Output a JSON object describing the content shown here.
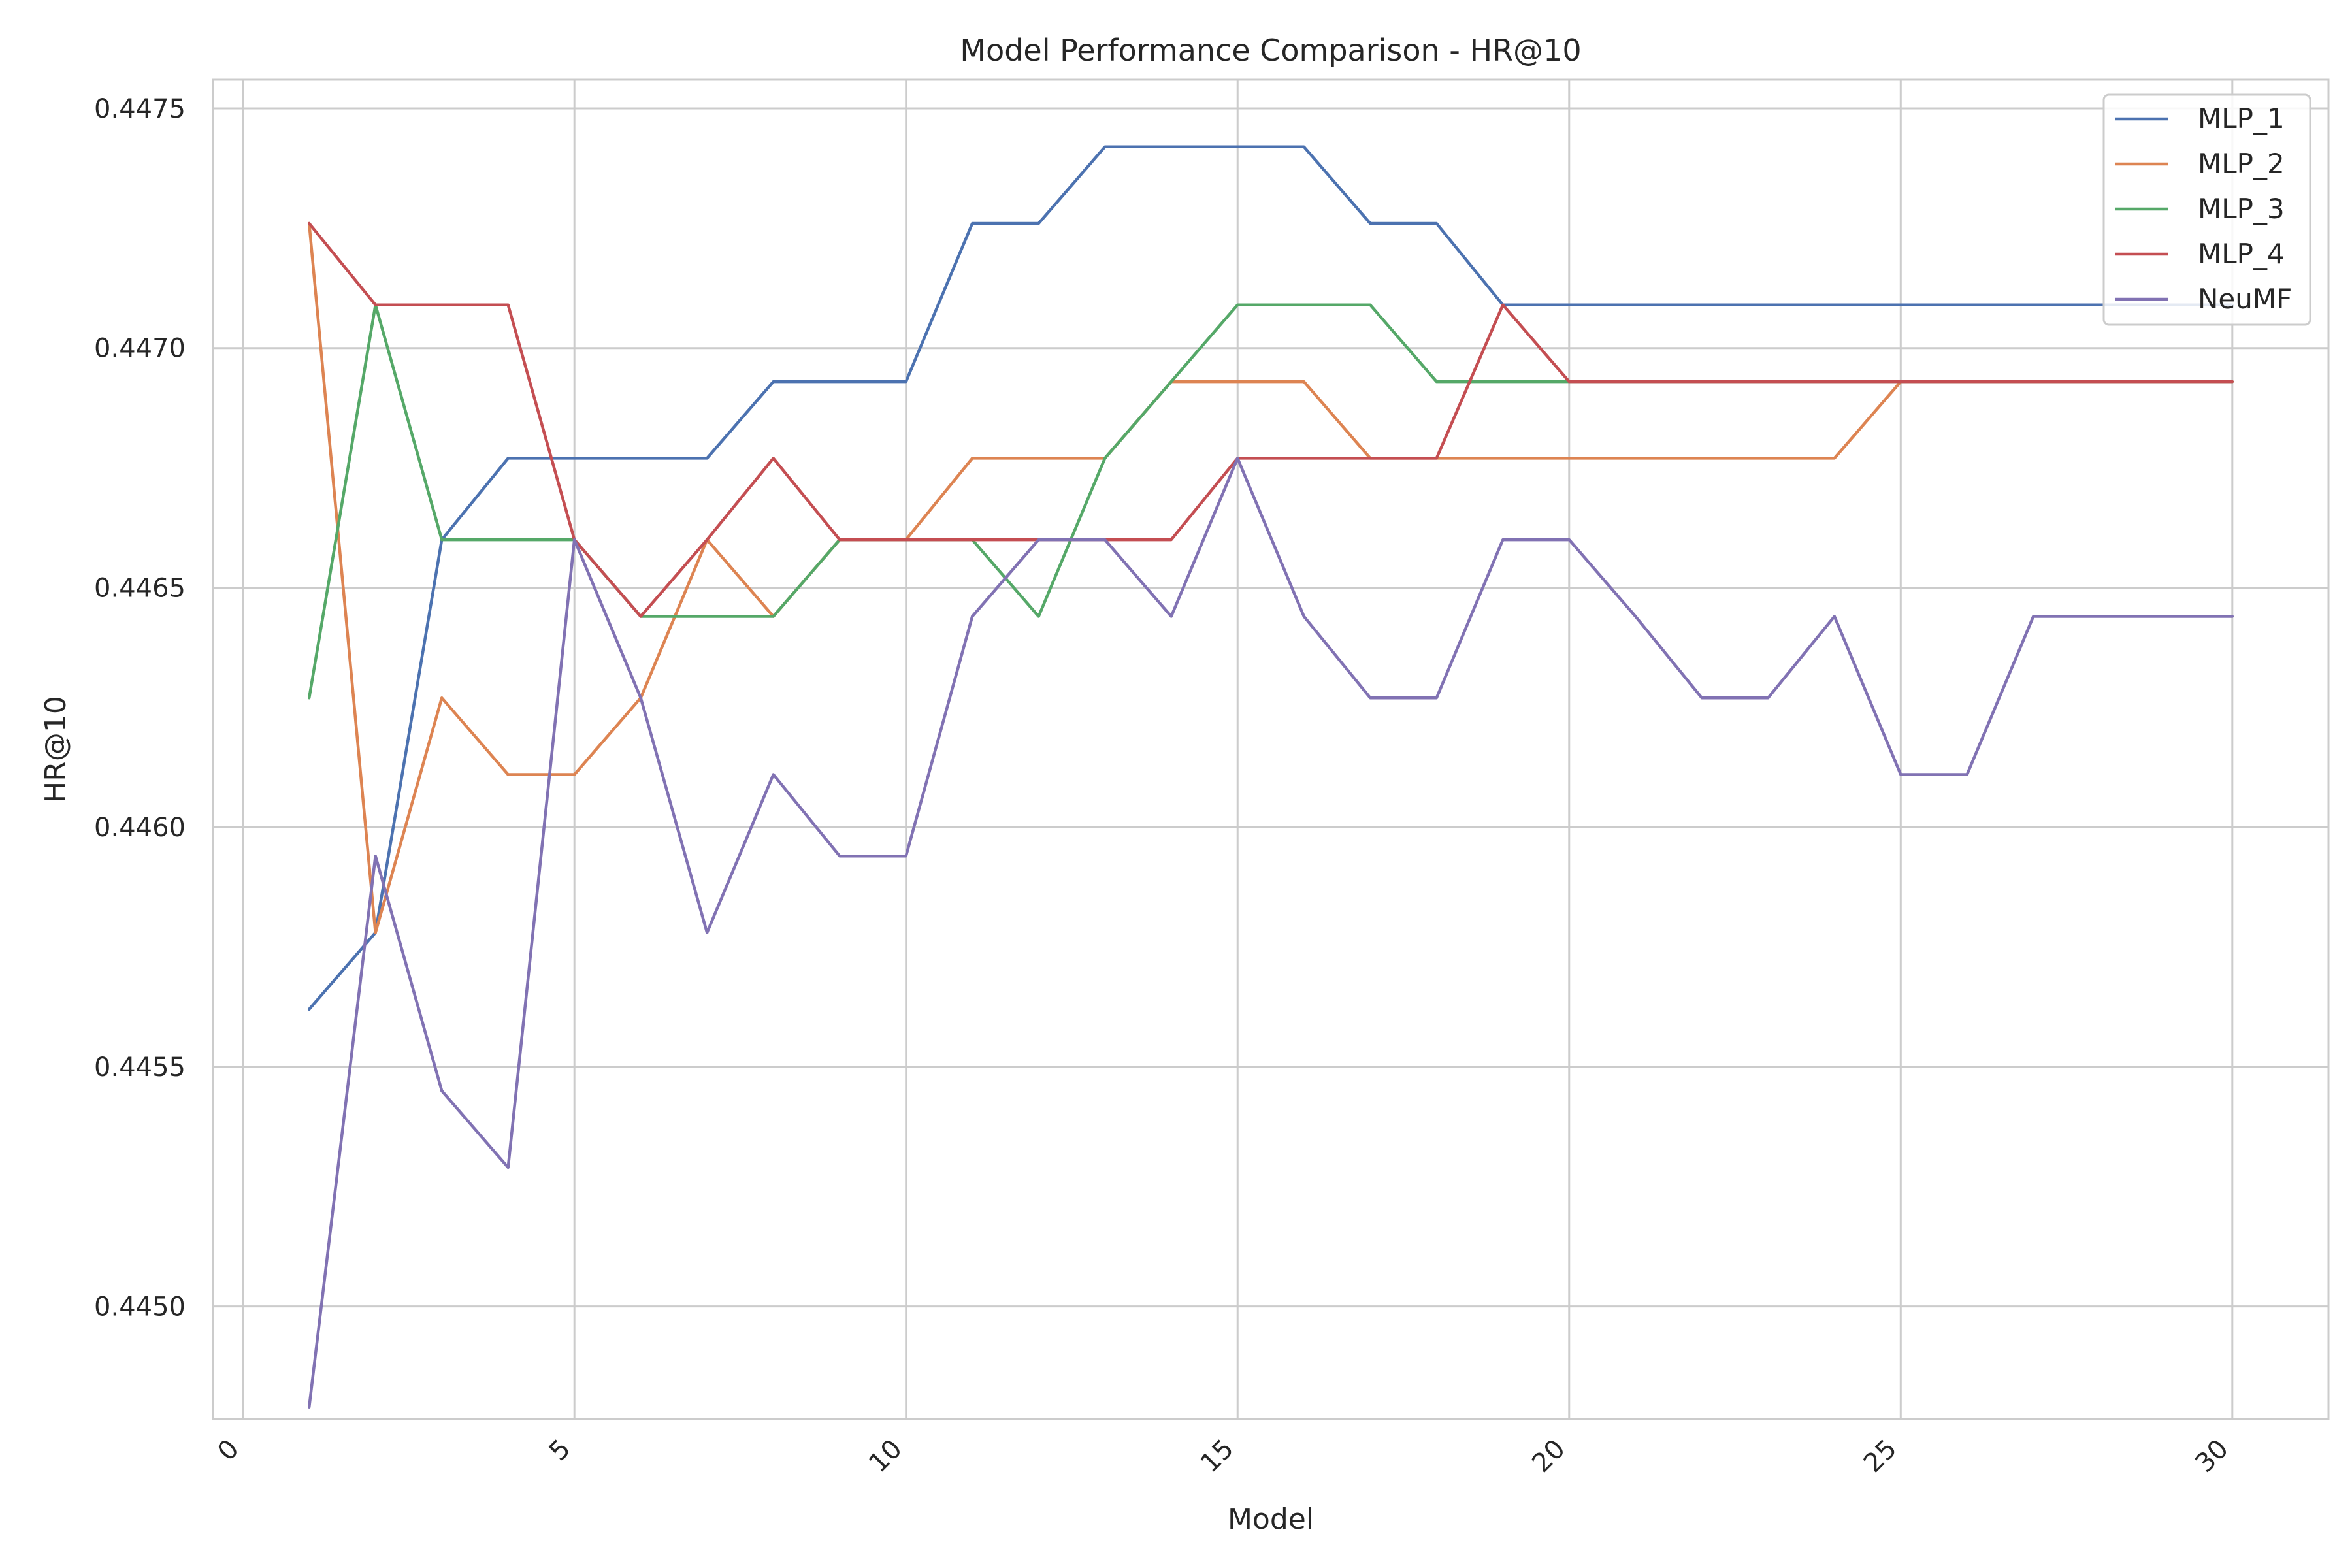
{
  "chart_data": {
    "type": "line",
    "title": "Model Performance Comparison - HR@10",
    "xlabel": "Model",
    "ylabel": "HR@10",
    "xlim": [
      -0.45,
      31.45
    ],
    "ylim": [
      0.444765,
      0.44756
    ],
    "xticks": [
      0,
      5,
      10,
      15,
      20,
      25,
      30
    ],
    "yticks": [
      0.445,
      0.4455,
      0.446,
      0.4465,
      0.447,
      0.4475
    ],
    "ytick_labels": [
      "0.4450",
      "0.4455",
      "0.4460",
      "0.4465",
      "0.4470",
      "0.4475"
    ],
    "grid": true,
    "legend_position": "top-right",
    "x": [
      1,
      2,
      3,
      4,
      5,
      6,
      7,
      8,
      9,
      10,
      11,
      12,
      13,
      14,
      15,
      16,
      17,
      18,
      19,
      20,
      21,
      22,
      23,
      24,
      25,
      26,
      27,
      28,
      29,
      30
    ],
    "series": [
      {
        "name": "MLP_1",
        "color": "#4c72b0",
        "values": [
          0.44562,
          0.44578,
          0.4466,
          0.44677,
          0.44677,
          0.44677,
          0.44677,
          0.44693,
          0.44693,
          0.44693,
          0.44726,
          0.44726,
          0.44742,
          0.44742,
          0.44742,
          0.44742,
          0.44726,
          0.44726,
          0.44709,
          0.44709,
          0.44709,
          0.44709,
          0.44709,
          0.44709,
          0.44709,
          0.44709,
          0.44709,
          0.44709,
          0.44709,
          0.44709
        ]
      },
      {
        "name": "MLP_2",
        "color": "#dd8452",
        "values": [
          0.44726,
          0.44578,
          0.44627,
          0.44611,
          0.44611,
          0.44627,
          0.4466,
          0.44644,
          0.4466,
          0.4466,
          0.44677,
          0.44677,
          0.44677,
          0.44693,
          0.44693,
          0.44693,
          0.44677,
          0.44677,
          0.44677,
          0.44677,
          0.44677,
          0.44677,
          0.44677,
          0.44677,
          0.44693,
          0.44693,
          0.44693,
          0.44693,
          0.44693,
          0.44693
        ]
      },
      {
        "name": "MLP_3",
        "color": "#55a868",
        "values": [
          0.44627,
          0.44709,
          0.4466,
          0.4466,
          0.4466,
          0.44644,
          0.44644,
          0.44644,
          0.4466,
          0.4466,
          0.4466,
          0.44644,
          0.44677,
          0.44693,
          0.44709,
          0.44709,
          0.44709,
          0.44693,
          0.44693,
          0.44693,
          0.44693,
          0.44693,
          0.44693,
          0.44693,
          0.44693,
          0.44693,
          0.44693,
          0.44693,
          0.44693,
          0.44693
        ]
      },
      {
        "name": "MLP_4",
        "color": "#c44e52",
        "values": [
          0.44726,
          0.44709,
          0.44709,
          0.44709,
          0.4466,
          0.44644,
          0.4466,
          0.44677,
          0.4466,
          0.4466,
          0.4466,
          0.4466,
          0.4466,
          0.4466,
          0.44677,
          0.44677,
          0.44677,
          0.44677,
          0.44709,
          0.44693,
          0.44693,
          0.44693,
          0.44693,
          0.44693,
          0.44693,
          0.44693,
          0.44693,
          0.44693,
          0.44693,
          0.44693
        ]
      },
      {
        "name": "NeuMF",
        "color": "#8172b3",
        "values": [
          0.44479,
          0.44594,
          0.44545,
          0.44529,
          0.4466,
          0.44627,
          0.44578,
          0.44611,
          0.44594,
          0.44594,
          0.44644,
          0.4466,
          0.4466,
          0.44644,
          0.44677,
          0.44644,
          0.44627,
          0.44627,
          0.4466,
          0.4466,
          0.44644,
          0.44627,
          0.44627,
          0.44644,
          0.44611,
          0.44611,
          0.44644,
          0.44644,
          0.44644,
          0.44644
        ]
      }
    ]
  }
}
